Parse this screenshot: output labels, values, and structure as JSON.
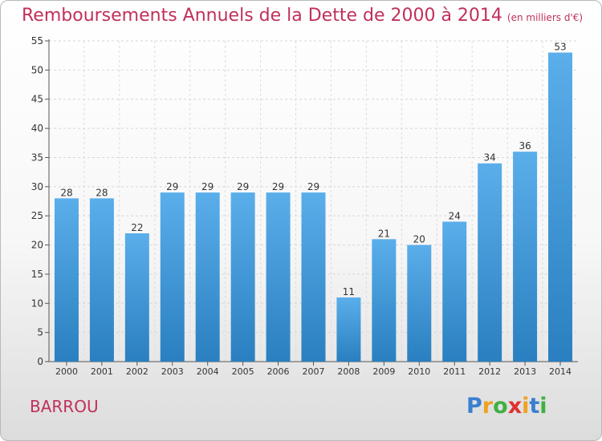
{
  "chart_data": {
    "type": "bar",
    "title": "Remboursements Annuels de la Dette de 2000 à 2014",
    "subtitle": "(en milliers d'€)",
    "xlabel": "",
    "ylabel": "",
    "categories": [
      "2000",
      "2001",
      "2002",
      "2003",
      "2004",
      "2005",
      "2006",
      "2007",
      "2008",
      "2009",
      "2010",
      "2011",
      "2012",
      "2013",
      "2014"
    ],
    "values": [
      28,
      28,
      22,
      29,
      29,
      29,
      29,
      29,
      11,
      21,
      20,
      24,
      34,
      36,
      53
    ],
    "ylim": [
      0,
      55
    ],
    "yticks": [
      0,
      5,
      10,
      15,
      20,
      25,
      30,
      35,
      40,
      45,
      50,
      55
    ],
    "grid": true,
    "legend": "none",
    "bar_color_light": "#5aaeea",
    "bar_color_dark": "#2a7fc0"
  },
  "municipality": "BARROU",
  "logo": {
    "letters": [
      "P",
      "r",
      "o",
      "x",
      "i",
      "t",
      "i"
    ],
    "colors": [
      "#3a7fd0",
      "#f0a020",
      "#40b040",
      "#e03030",
      "#f0a020",
      "#3a7fd0",
      "#40b040"
    ]
  }
}
